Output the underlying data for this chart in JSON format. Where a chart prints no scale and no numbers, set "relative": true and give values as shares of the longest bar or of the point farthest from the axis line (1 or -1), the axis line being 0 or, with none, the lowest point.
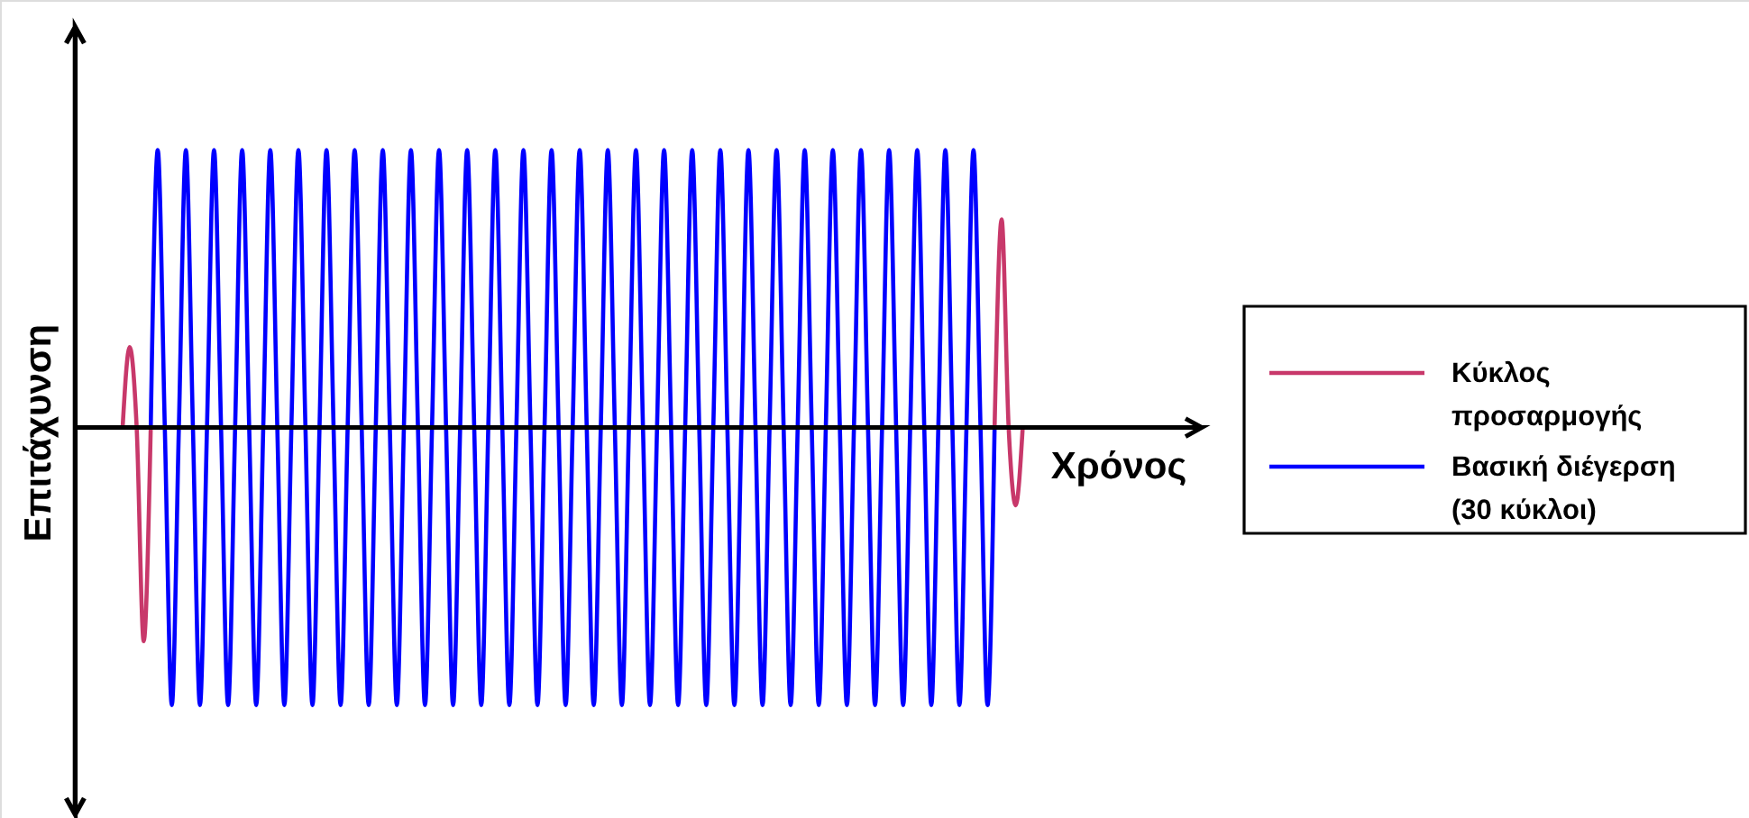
{
  "chart_data": {
    "type": "line",
    "relative": true,
    "xlabel": "Χρόνος",
    "ylabel": "Επιτάχυνση",
    "legend": "right",
    "line_style": "solid",
    "categories": [
      null,
      null,
      null,
      null,
      null,
      null,
      null,
      null,
      null,
      null,
      null,
      null,
      null,
      null,
      null,
      null,
      null,
      null,
      null,
      null,
      null,
      null,
      null,
      null,
      null,
      null,
      null,
      null,
      null,
      null,
      null,
      null,
      null,
      null,
      null,
      null,
      null,
      null,
      null,
      null,
      null,
      null,
      null,
      null,
      null,
      null,
      null,
      null,
      null,
      null,
      null,
      null,
      null,
      null,
      null,
      null,
      null,
      null,
      null,
      null,
      null,
      null,
      null,
      null,
      null,
      null,
      null,
      null,
      null,
      null,
      null,
      null,
      null,
      null,
      null,
      null,
      null,
      null,
      null,
      null,
      null,
      null,
      null,
      null,
      null,
      null,
      null,
      null,
      null,
      null,
      null,
      null,
      null,
      null,
      null,
      null,
      null,
      null,
      null,
      null,
      null,
      null,
      null,
      null,
      null,
      null,
      null,
      null,
      null,
      null,
      null,
      null,
      null,
      null,
      null,
      null,
      null,
      null,
      null,
      null,
      null,
      null,
      null,
      null,
      null,
      null,
      null,
      null,
      null
    ],
    "series": [
      {
        "name": "Κύκλος προσαρμογής",
        "color": "#c8386a",
        "values": [
          0,
          0.29,
          0,
          -0.77,
          0,
          null,
          null,
          null,
          null,
          null,
          null,
          null,
          null,
          null,
          null,
          null,
          null,
          null,
          null,
          null,
          null,
          null,
          null,
          null,
          null,
          null,
          null,
          null,
          null,
          null,
          null,
          null,
          null,
          null,
          null,
          null,
          null,
          null,
          null,
          null,
          null,
          null,
          null,
          null,
          null,
          null,
          null,
          null,
          null,
          null,
          null,
          null,
          null,
          null,
          null,
          null,
          null,
          null,
          null,
          null,
          null,
          null,
          null,
          null,
          null,
          null,
          null,
          null,
          null,
          null,
          null,
          null,
          null,
          null,
          null,
          null,
          null,
          null,
          null,
          null,
          null,
          null,
          null,
          null,
          null,
          null,
          null,
          null,
          null,
          null,
          null,
          null,
          null,
          null,
          null,
          null,
          null,
          null,
          null,
          null,
          null,
          null,
          null,
          null,
          null,
          null,
          null,
          null,
          null,
          null,
          null,
          null,
          null,
          null,
          null,
          null,
          null,
          null,
          null,
          null,
          null,
          null,
          null,
          null,
          0,
          0.75,
          0,
          -0.28,
          0
        ]
      },
      {
        "name": "Βασική διέγερση (30 κύκλοι)",
        "color": "#0000ff",
        "values": [
          null,
          null,
          null,
          null,
          0,
          1,
          0,
          -1,
          0,
          1,
          0,
          -1,
          0,
          1,
          0,
          -1,
          0,
          1,
          0,
          -1,
          0,
          1,
          0,
          -1,
          0,
          1,
          0,
          -1,
          0,
          1,
          0,
          -1,
          0,
          1,
          0,
          -1,
          0,
          1,
          0,
          -1,
          0,
          1,
          0,
          -1,
          0,
          1,
          0,
          -1,
          0,
          1,
          0,
          -1,
          0,
          1,
          0,
          -1,
          0,
          1,
          0,
          -1,
          0,
          1,
          0,
          -1,
          0,
          1,
          0,
          -1,
          0,
          1,
          0,
          -1,
          0,
          1,
          0,
          -1,
          0,
          1,
          0,
          -1,
          0,
          1,
          0,
          -1,
          0,
          1,
          0,
          -1,
          0,
          1,
          0,
          -1,
          0,
          1,
          0,
          -1,
          0,
          1,
          0,
          -1,
          0,
          1,
          0,
          -1,
          0,
          1,
          0,
          -1,
          0,
          1,
          0,
          -1,
          0,
          1,
          0,
          -1,
          0,
          1,
          0,
          -1,
          0,
          1,
          0,
          -1,
          0,
          null,
          null,
          null,
          null
        ]
      }
    ]
  }
}
